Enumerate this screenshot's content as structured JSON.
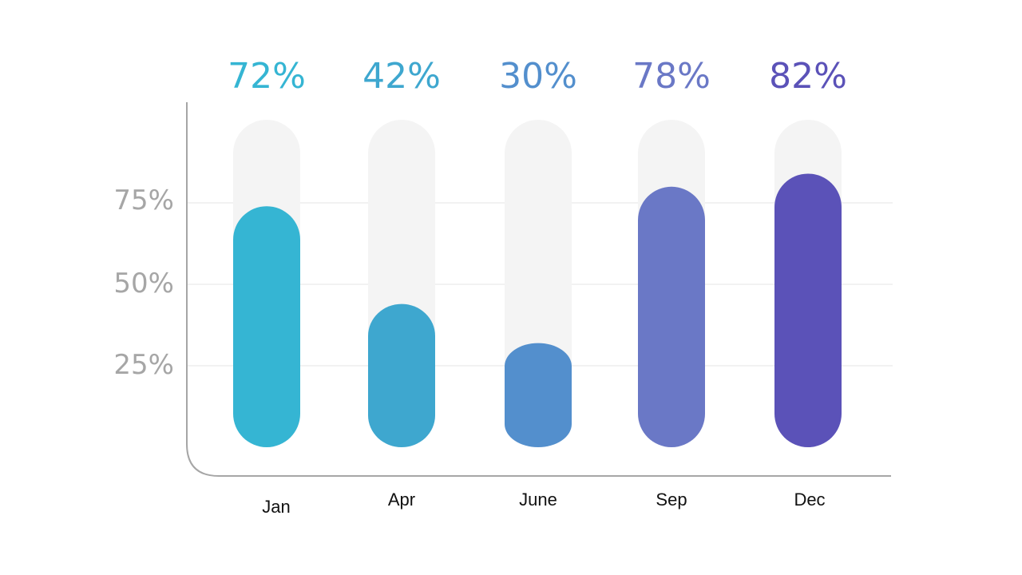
{
  "chart_data": {
    "type": "bar",
    "categories": [
      "Jan",
      "Apr",
      "June",
      "Sep",
      "Dec"
    ],
    "values": [
      72,
      42,
      30,
      78,
      82
    ],
    "value_labels": [
      "72%",
      "42%",
      "30%",
      "78%",
      "82%"
    ],
    "yticks": [
      "25%",
      "50%",
      "75%"
    ],
    "ylim": [
      0,
      100
    ],
    "grid": true,
    "colors": [
      "#35b5d3",
      "#3ea7cf",
      "#538fcd",
      "#6a78c6",
      "#5b52b8"
    ],
    "track_color": "#f4f4f4"
  }
}
